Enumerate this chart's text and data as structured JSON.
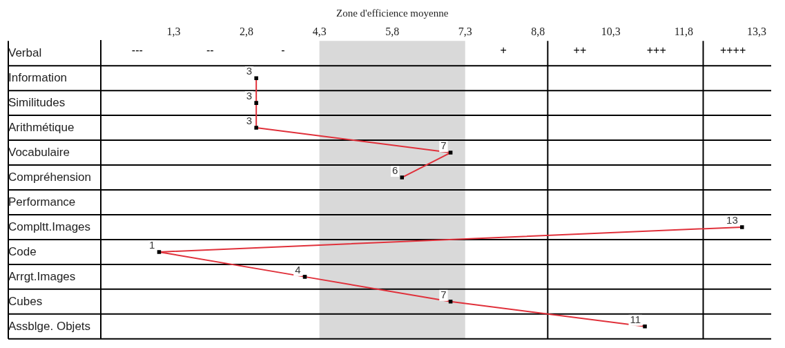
{
  "chart_data": {
    "type": "line",
    "orientation": "horizontal",
    "categories": [
      "Verbal",
      "Information",
      "Similitudes",
      "Arithmétique",
      "Vocabulaire",
      "Compréhension",
      "Performance",
      "Compltt.Images",
      "Code",
      "Arrgt.Images",
      "Cubes",
      "Assblge. Objets"
    ],
    "series": [
      {
        "color": "#e0303a",
        "values": [
          null,
          3,
          3,
          3,
          7,
          6,
          null,
          13,
          1,
          4,
          7,
          11
        ]
      }
    ],
    "xlim": [
      -0.2,
      13.6
    ],
    "xticks": [
      {
        "value": 1.3,
        "label": "1,3"
      },
      {
        "value": 2.8,
        "label": "2,8"
      },
      {
        "value": 4.3,
        "label": "4,3"
      },
      {
        "value": 5.8,
        "label": "5,8"
      },
      {
        "value": 7.3,
        "label": "7,3"
      },
      {
        "value": 8.8,
        "label": "8,8"
      },
      {
        "value": 10.3,
        "label": "10,3"
      },
      {
        "value": 11.8,
        "label": "11,8"
      },
      {
        "value": 13.3,
        "label": "13,3"
      }
    ],
    "bands": [
      {
        "axis": "x",
        "from": 4.3,
        "to": 7.3,
        "label": "Zone d'efficience moyenne",
        "color": "#d9d9d9"
      }
    ],
    "ref_lines": [
      {
        "axis": "x",
        "value": 9
      },
      {
        "axis": "x",
        "value": 12.2
      }
    ],
    "annotations": [
      "---",
      "--",
      "-",
      "+",
      "++",
      "+++",
      "++++"
    ],
    "data_labels": true,
    "marker": "square",
    "line_style": "solid",
    "grid": "y",
    "legend": false
  }
}
